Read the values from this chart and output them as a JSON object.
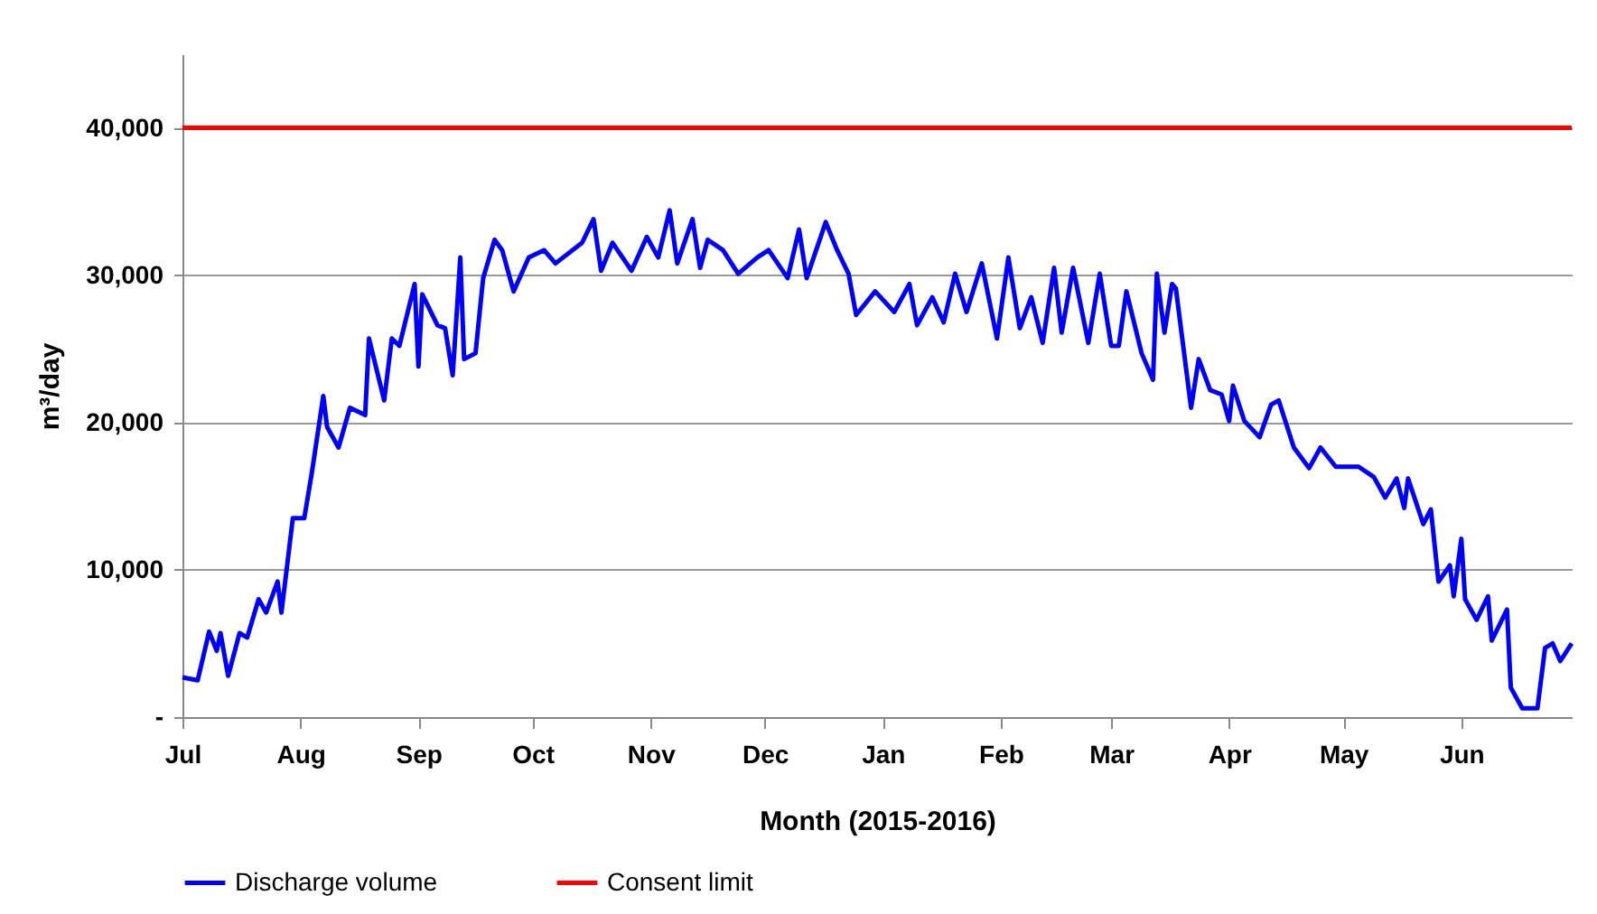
{
  "chart_data": {
    "type": "line",
    "xlabel": "Month (2015-2016)",
    "ylabel": "m³/day",
    "x": [
      "2015-07-01",
      "2015-07-05",
      "2015-07-08",
      "2015-07-10",
      "2015-07-11",
      "2015-07-13",
      "2015-07-16",
      "2015-07-18",
      "2015-07-21",
      "2015-07-23",
      "2015-07-26",
      "2015-07-27",
      "2015-07-30",
      "2015-08-02",
      "2015-08-04",
      "2015-08-07",
      "2015-08-08",
      "2015-08-11",
      "2015-08-14",
      "2015-08-18",
      "2015-08-19",
      "2015-08-23",
      "2015-08-25",
      "2015-08-27",
      "2015-08-31",
      "2015-09-01",
      "2015-09-02",
      "2015-09-06",
      "2015-09-08",
      "2015-09-10",
      "2015-09-12",
      "2015-09-13",
      "2015-09-16",
      "2015-09-18",
      "2015-09-21",
      "2015-09-23",
      "2015-09-26",
      "2015-09-30",
      "2015-10-04",
      "2015-10-07",
      "2015-10-14",
      "2015-10-17",
      "2015-10-19",
      "2015-10-22",
      "2015-10-27",
      "2015-10-31",
      "2015-11-03",
      "2015-11-06",
      "2015-11-08",
      "2015-11-12",
      "2015-11-14",
      "2015-11-16",
      "2015-11-20",
      "2015-11-24",
      "2015-11-29",
      "2015-12-02",
      "2015-12-07",
      "2015-12-10",
      "2015-12-12",
      "2015-12-17",
      "2015-12-20",
      "2015-12-23",
      "2015-12-25",
      "2015-12-30",
      "2016-01-04",
      "2016-01-08",
      "2016-01-10",
      "2016-01-14",
      "2016-01-17",
      "2016-01-20",
      "2016-01-23",
      "2016-01-27",
      "2016-01-31",
      "2016-02-03",
      "2016-02-06",
      "2016-02-09",
      "2016-02-12",
      "2016-02-15",
      "2016-02-17",
      "2016-02-20",
      "2016-02-24",
      "2016-02-27",
      "2016-03-01",
      "2016-03-03",
      "2016-03-05",
      "2016-03-09",
      "2016-03-12",
      "2016-03-13",
      "2016-03-15",
      "2016-03-17",
      "2016-03-18",
      "2016-03-22",
      "2016-03-24",
      "2016-03-27",
      "2016-03-30",
      "2016-04-01",
      "2016-04-02",
      "2016-04-05",
      "2016-04-09",
      "2016-04-12",
      "2016-04-14",
      "2016-04-18",
      "2016-04-22",
      "2016-04-25",
      "2016-04-29",
      "2016-05-05",
      "2016-05-09",
      "2016-05-12",
      "2016-05-15",
      "2016-05-17",
      "2016-05-18",
      "2016-05-22",
      "2016-05-24",
      "2016-05-26",
      "2016-05-29",
      "2016-05-30",
      "2016-06-01",
      "2016-06-02",
      "2016-06-05",
      "2016-06-08",
      "2016-06-09",
      "2016-06-13",
      "2016-06-14",
      "2016-06-17",
      "2016-06-21",
      "2016-06-23",
      "2016-06-25",
      "2016-06-27",
      "2016-06-30"
    ],
    "series": [
      {
        "name": "Discharge volume",
        "color": "#0000ff",
        "values": [
          2700,
          2500,
          5800,
          4500,
          5700,
          2800,
          5700,
          5400,
          8000,
          7100,
          9200,
          7100,
          13500,
          13500,
          16600,
          21800,
          19700,
          18300,
          21000,
          20500,
          25700,
          21500,
          25700,
          25200,
          29400,
          23800,
          28700,
          26600,
          26400,
          23200,
          31200,
          24300,
          24700,
          29800,
          32400,
          31700,
          28900,
          31200,
          31700,
          30800,
          32200,
          33800,
          30300,
          32200,
          30300,
          32600,
          31200,
          34400,
          30800,
          33800,
          30500,
          32400,
          31700,
          30100,
          31200,
          31700,
          29800,
          33100,
          29800,
          33600,
          31700,
          30100,
          27300,
          28900,
          27500,
          29400,
          26600,
          28500,
          26800,
          30100,
          27500,
          30800,
          25700,
          31200,
          26400,
          28500,
          25400,
          30500,
          26100,
          30500,
          25400,
          30100,
          25200,
          25200,
          28900,
          24700,
          22900,
          30100,
          26100,
          29400,
          29100,
          21000,
          24300,
          22200,
          21900,
          20100,
          22500,
          20100,
          19000,
          21200,
          21500,
          18300,
          16900,
          18300,
          17000,
          17000,
          16300,
          14900,
          16200,
          14200,
          16200,
          13100,
          14100,
          9200,
          10300,
          8200,
          12100,
          8000,
          6600,
          8200,
          5200,
          7300,
          2000,
          600,
          600,
          4700,
          5000,
          3800,
          5000
        ]
      }
    ],
    "ref_lines": [
      {
        "axis": "y",
        "value": 40000,
        "label": "Consent limit",
        "color": "#ff0000"
      }
    ],
    "xlim": [
      "2015-07-01",
      "2016-06-30"
    ],
    "xticks": [
      {
        "value": "2015-07-01",
        "label": "Jul"
      },
      {
        "value": "2015-08-01",
        "label": "Aug"
      },
      {
        "value": "2015-09-01",
        "label": "Sep"
      },
      {
        "value": "2015-10-01",
        "label": "Oct"
      },
      {
        "value": "2015-11-01",
        "label": "Nov"
      },
      {
        "value": "2015-12-01",
        "label": "Dec"
      },
      {
        "value": "2016-01-01",
        "label": "Jan"
      },
      {
        "value": "2016-02-01",
        "label": "Feb"
      },
      {
        "value": "2016-03-01",
        "label": "Mar"
      },
      {
        "value": "2016-04-01",
        "label": "Apr"
      },
      {
        "value": "2016-05-01",
        "label": "May"
      },
      {
        "value": "2016-06-01",
        "label": "Jun"
      }
    ],
    "ylim": [
      0,
      45000
    ],
    "yticks": [
      {
        "value": 0,
        "label": "-"
      },
      {
        "value": 10000,
        "label": "10,000"
      },
      {
        "value": 20000,
        "label": "20,000"
      },
      {
        "value": 30000,
        "label": "30,000"
      },
      {
        "value": 40000,
        "label": "40,000"
      }
    ],
    "grid": "y",
    "legend": "bottom",
    "marker": "none",
    "line_style": "solid"
  }
}
